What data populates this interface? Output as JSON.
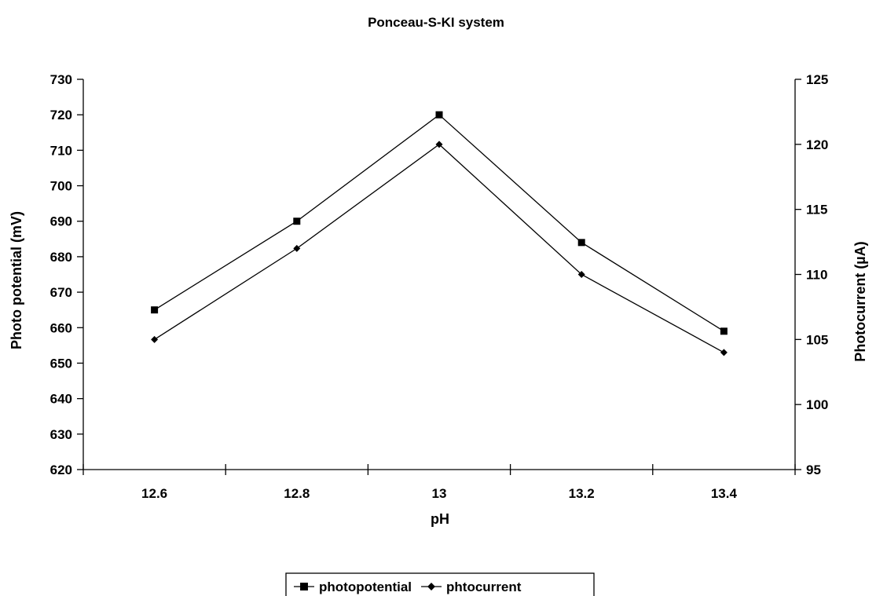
{
  "chart_data": {
    "type": "line",
    "title": "Ponceau-S-KI system",
    "xlabel": "pH",
    "ylabel": "Photo potential (mV)",
    "y2label": "Photocurrent (µA)",
    "categories": [
      "12.6",
      "12.8",
      "13",
      "13.2",
      "13.4"
    ],
    "ylim": [
      620,
      730
    ],
    "yticks": [
      620,
      630,
      640,
      650,
      660,
      670,
      680,
      690,
      700,
      710,
      720,
      730
    ],
    "y2lim": [
      95,
      125
    ],
    "y2ticks": [
      95,
      100,
      105,
      110,
      115,
      120,
      125
    ],
    "grid": false,
    "legend_position": "bottom",
    "series": [
      {
        "name": "photopotential",
        "axis": "left",
        "marker": "square",
        "color": "#000000",
        "values": [
          665,
          690,
          720,
          684,
          659
        ]
      },
      {
        "name": "phtocurrent",
        "axis": "right",
        "marker": "diamond",
        "color": "#000000",
        "values": [
          105,
          112,
          120,
          110,
          104
        ]
      }
    ]
  }
}
